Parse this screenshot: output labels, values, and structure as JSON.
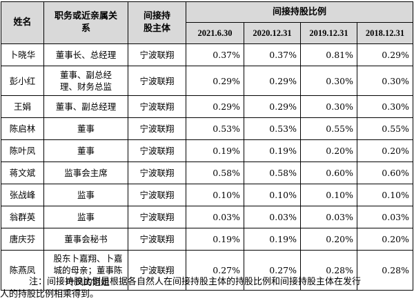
{
  "table": {
    "header": {
      "name": "姓名",
      "relation": "职务或近亲属关系",
      "entity": "间接持股主体",
      "ratio_group": "间接持股比例",
      "dates": [
        "2021.6.30",
        "2020.12.31",
        "2019.12.31",
        "2018.12.31"
      ]
    },
    "rows": [
      {
        "name": "卜晓华",
        "relation": "董事长、总经理",
        "entity": "宁波联翔",
        "values": [
          "0.37%",
          "0.37%",
          "0.81%",
          "0.29%"
        ]
      },
      {
        "name": "彭小红",
        "relation": "董事、副总经理、财务总监",
        "entity": "宁波联翔",
        "values": [
          "0.29%",
          "0.29%",
          "0.30%",
          "0.30%"
        ]
      },
      {
        "name": "王娟",
        "relation": "董事、副总经理",
        "entity": "宁波联翔",
        "values": [
          "0.29%",
          "0.29%",
          "0.30%",
          "0.30%"
        ]
      },
      {
        "name": "陈启林",
        "relation": "董事",
        "entity": "宁波联翔",
        "values": [
          "0.53%",
          "0.53%",
          "0.55%",
          "0.55%"
        ]
      },
      {
        "name": "陈叶凤",
        "relation": "董事",
        "entity": "宁波联翔",
        "values": [
          "0.19%",
          "0.19%",
          "0.20%",
          "0.20%"
        ]
      },
      {
        "name": "蒋文斌",
        "relation": "监事会主席",
        "entity": "宁波联翔",
        "values": [
          "0.58%",
          "0.58%",
          "0.60%",
          "0.60%"
        ]
      },
      {
        "name": "张战峰",
        "relation": "监事",
        "entity": "宁波联翔",
        "values": [
          "0.10%",
          "0.10%",
          "0.10%",
          "0.10%"
        ]
      },
      {
        "name": "翁群英",
        "relation": "监事",
        "entity": "宁波联翔",
        "values": [
          "0.03%",
          "0.03%",
          "0.03%",
          "0.03%"
        ]
      },
      {
        "name": "唐庆芬",
        "relation": "董事会秘书",
        "entity": "宁波联翔",
        "values": [
          "0.19%",
          "0.19%",
          "0.20%",
          "0.20%"
        ]
      },
      {
        "name": "陈燕凤",
        "relation": "股东卜嘉翔、卜嘉城的母亲；董事陈叶凤的姐姐",
        "entity": "宁波联翔",
        "values": [
          "0.27%",
          "0.27%",
          "0.28%",
          "0.28%"
        ]
      }
    ]
  },
  "note": {
    "line1": "注：间接持股比例是根据各自然人在间接持股主体的持股比例和间接持股主体在发行",
    "line2": "人的持股比例相乘得到。"
  }
}
